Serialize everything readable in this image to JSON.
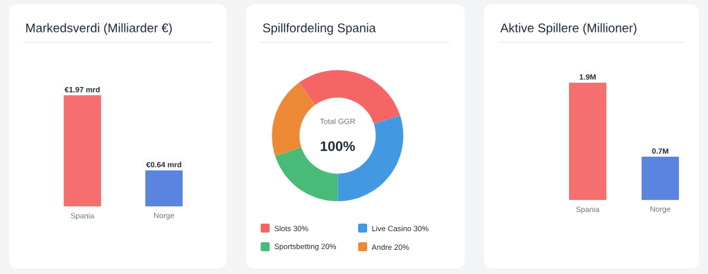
{
  "chart_data": [
    {
      "type": "bar",
      "title": "Markedsverdi (Milliarder €)",
      "categories": [
        "Spania",
        "Norge"
      ],
      "values": [
        1.97,
        0.64
      ],
      "colors": [
        "#f56f6f",
        "#5a84e0"
      ],
      "value_labels": [
        "€1.97 mrd",
        "€0.64 mrd"
      ]
    },
    {
      "type": "donut",
      "title": "Spillfordeling Spania",
      "categories": [
        "Slots 30%",
        "Live Casino 30%",
        "Sportsbetting 20%",
        "Andre 20%"
      ],
      "values": [
        30,
        30,
        20,
        20
      ],
      "colors": [
        "#f56565",
        "#4299e1",
        "#48bb78",
        "#ed8936"
      ],
      "annotations": [
        "Total GGR",
        "100%"
      ],
      "legend": "bottom"
    },
    {
      "type": "bar",
      "title": "Aktive Spillere (Millioner)",
      "categories": [
        "Spania",
        "Norge"
      ],
      "values": [
        1.9,
        0.7
      ],
      "colors": [
        "#f56f6f",
        "#5a84e0"
      ],
      "value_labels": [
        "1.9M",
        "0.7M"
      ]
    }
  ]
}
